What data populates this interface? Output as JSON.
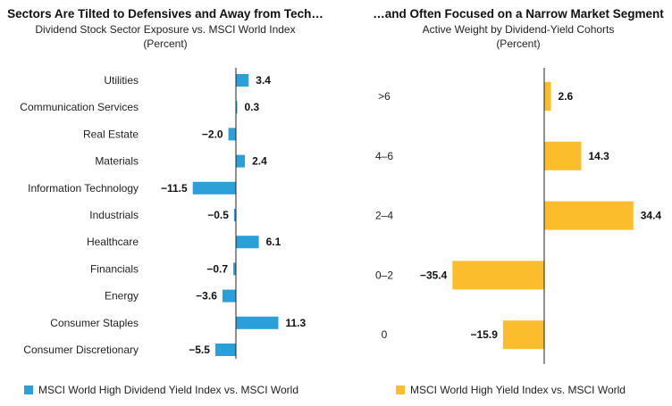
{
  "chart_data": [
    {
      "type": "bar",
      "orientation": "horizontal",
      "title": "Sectors Are Tilted to Defensives and Away from Tech…",
      "subtitle": "Dividend Stock Sector Exposure vs. MSCI World Index",
      "unit": "(Percent)",
      "categories": [
        "Utilities",
        "Communication Services",
        "Real Estate",
        "Materials",
        "Information Technology",
        "Industrials",
        "Healthcare",
        "Financials",
        "Energy",
        "Consumer Staples",
        "Consumer Discretionary"
      ],
      "value_labels": [
        "3.4",
        "0.3",
        "−2.0",
        "2.4",
        "−11.5",
        "−0.5",
        "6.1",
        "−0.7",
        "−3.6",
        "11.3",
        "−5.5"
      ],
      "series": [
        {
          "name": "MSCI World High Dividend Yield Index vs. MSCI World",
          "values": [
            3.4,
            0.3,
            -2.0,
            2.4,
            -11.5,
            -0.5,
            6.1,
            -0.7,
            -3.6,
            11.3,
            -5.5
          ]
        }
      ],
      "color": "#2a9fd8",
      "xlim": [
        -14,
        14
      ],
      "legend_position": "bottom"
    },
    {
      "type": "bar",
      "orientation": "horizontal",
      "title": "…and Often Focused on a Narrow Market Segment",
      "subtitle": "Active Weight by Dividend-Yield Cohorts",
      "unit": "(Percent)",
      "categories": [
        ">6",
        "4–6",
        "2–4",
        "0–2",
        "0"
      ],
      "value_labels": [
        "2.6",
        "14.3",
        "34.4",
        "−35.4",
        "−15.9"
      ],
      "series": [
        {
          "name": "MSCI World High Yield Index vs. MSCI World",
          "values": [
            2.6,
            14.3,
            34.4,
            -35.4,
            -15.9
          ]
        }
      ],
      "color": "#fbbd2b",
      "xlim": [
        -38,
        38
      ],
      "legend_position": "bottom"
    }
  ]
}
